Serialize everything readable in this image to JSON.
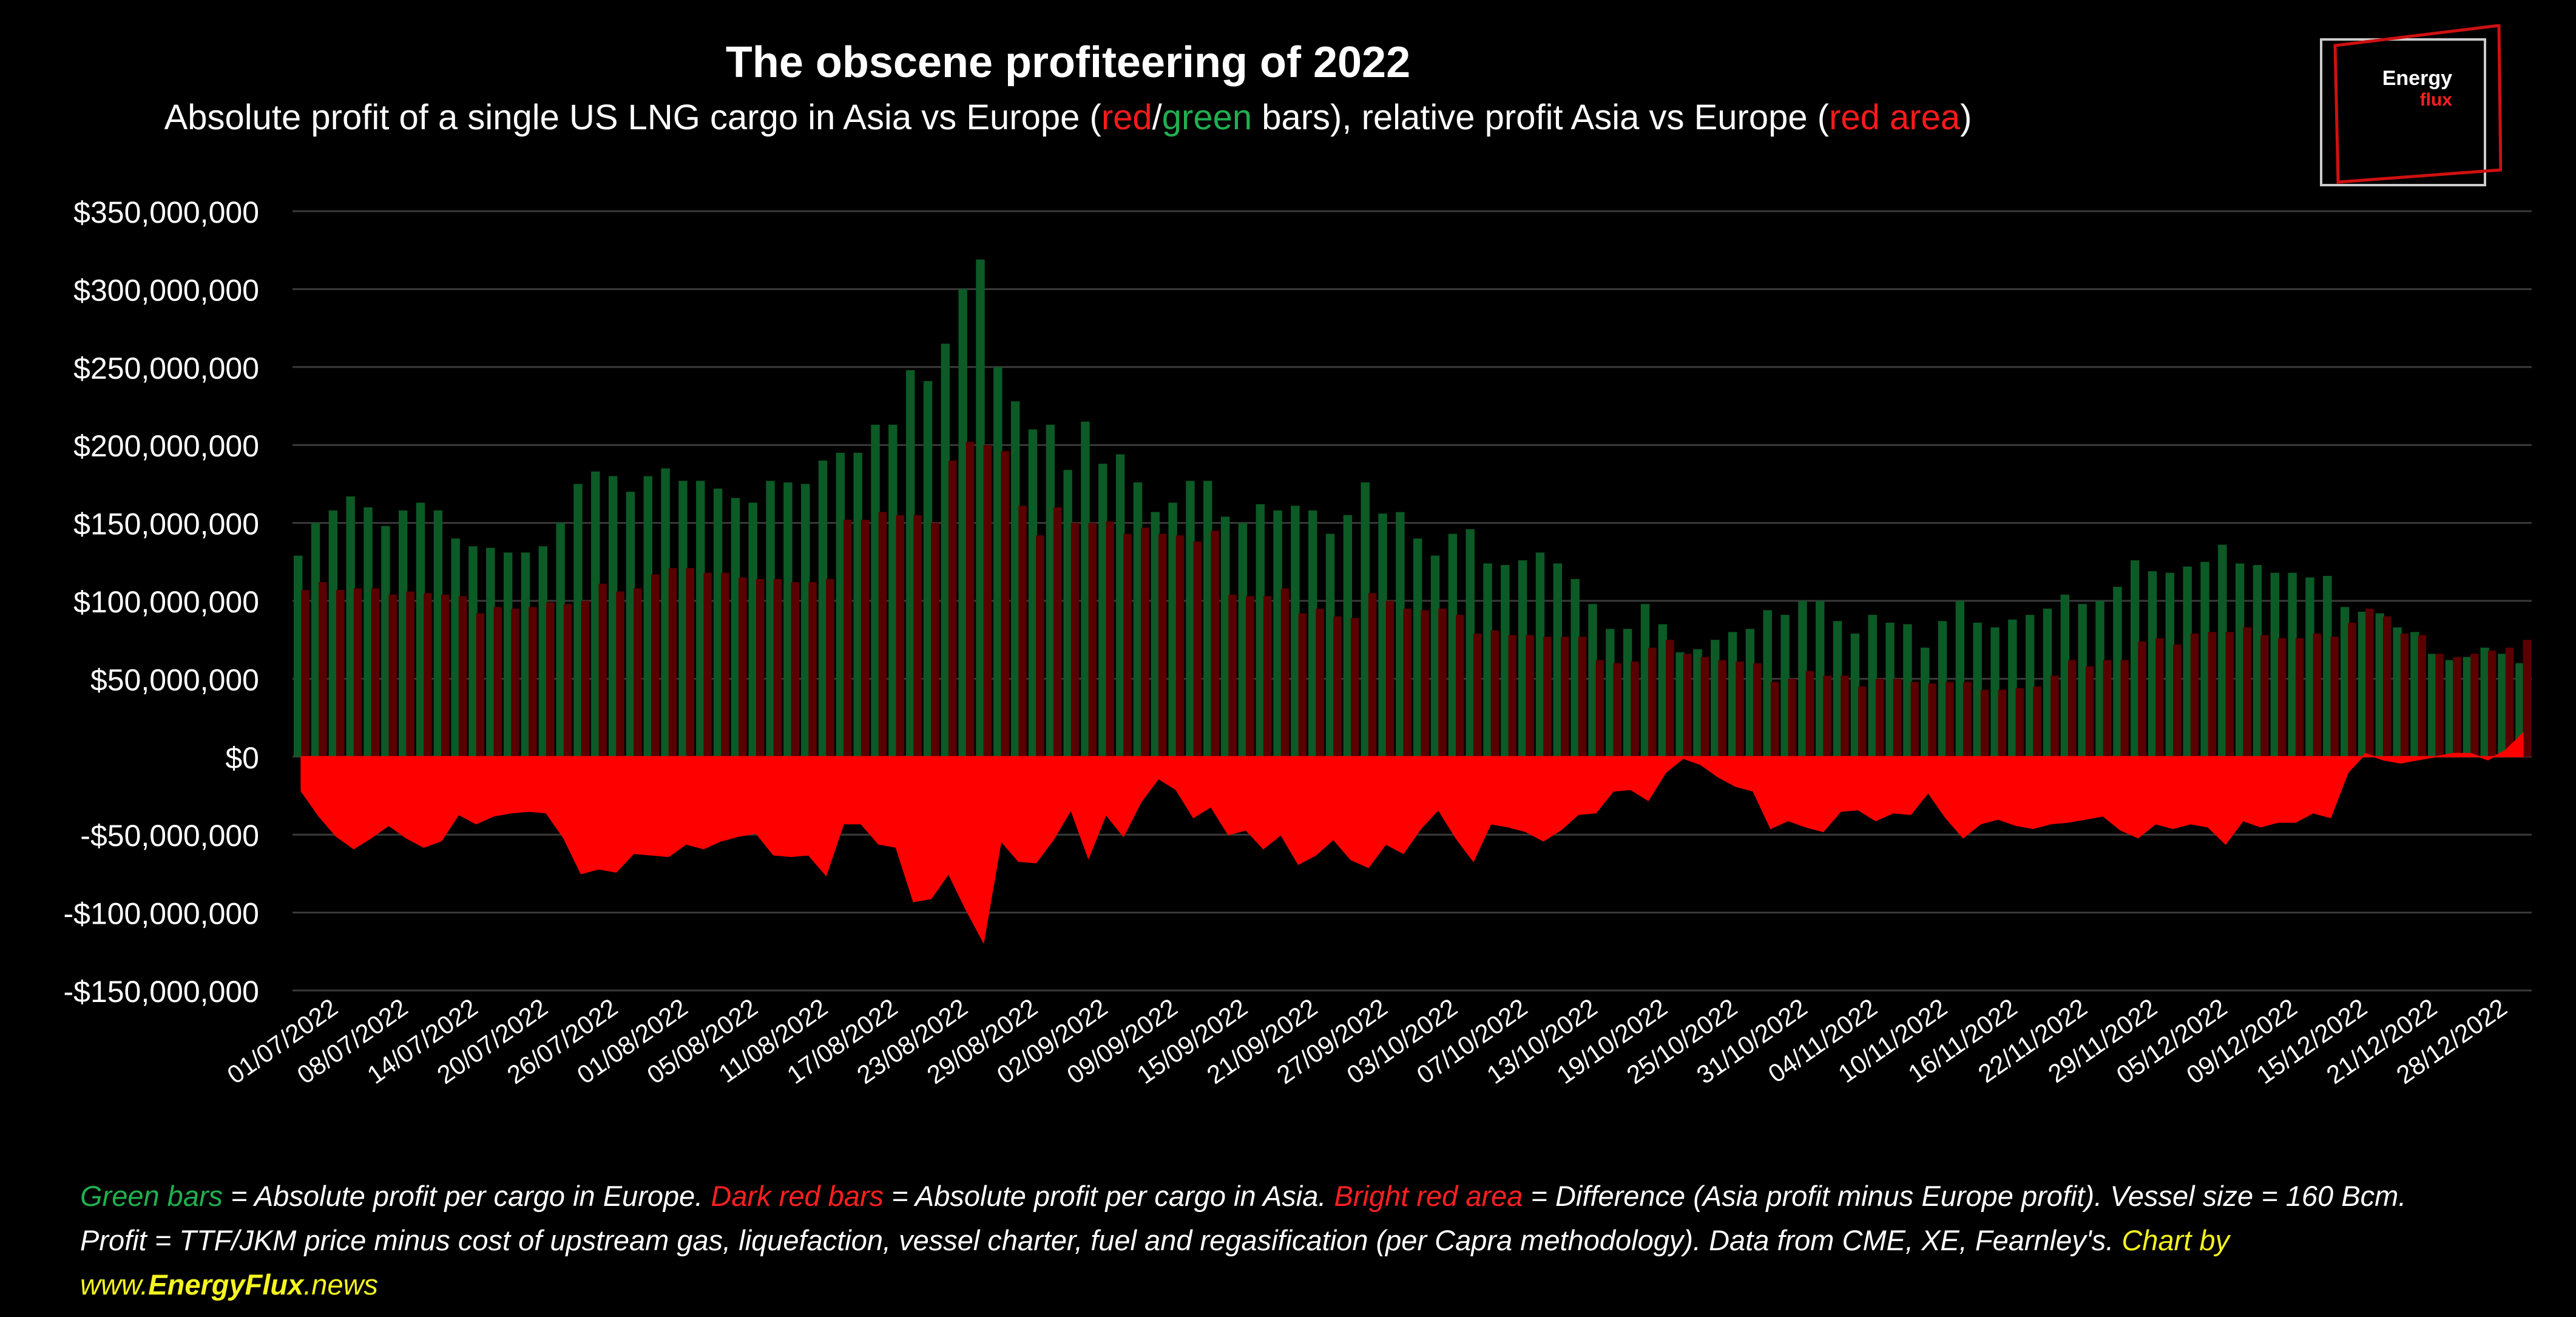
{
  "title": "The obscene profiteering of 2022",
  "subtitle": {
    "part1": "Absolute profit of a single US LNG cargo in Asia vs Europe (",
    "red": "red",
    "slash": "/",
    "green": "green",
    "part2": " bars), relative profit Asia vs Europe (",
    "red_area": "red area",
    "part3": ")"
  },
  "logo": {
    "line1": "Energy",
    "line2": "flux"
  },
  "footer": {
    "green_label": "Green bars",
    "green_desc": " = Absolute profit per cargo in Europe. ",
    "darkred_label": "Dark red bars",
    "darkred_desc": " = Absolute profit per cargo in Asia. ",
    "bright_label": "Bright red area",
    "bright_desc": " = Difference (Asia profit minus Europe profit). Vessel size = 160 Bcm.",
    "line2": "Profit = TTF/JKM price minus cost of upstream gas, liquefaction, vessel charter, fuel and regasification (per Capra methodology). Data from CME, XE, Fearnley's.",
    "chart_by": " Chart by",
    "site_pre": "www.",
    "site_bold": "EnergyFlux",
    "site_post": ".news"
  },
  "colors": {
    "europe_bar": "#0c5a26",
    "asia_bar": "#5a0000",
    "difference_area": "#ff0000",
    "grid": "#3a3a3a"
  },
  "chart_data": {
    "type": "bar",
    "title": "The obscene profiteering of 2022",
    "ylim": [
      -150000000,
      350000000
    ],
    "yticks": [
      350000000,
      300000000,
      250000000,
      200000000,
      150000000,
      100000000,
      50000000,
      0,
      -50000000,
      -100000000,
      -150000000
    ],
    "ytick_labels": [
      "$350,000,000",
      "$300,000,000",
      "$250,000,000",
      "$200,000,000",
      "$150,000,000",
      "$100,000,000",
      "$50,000,000",
      "$0",
      "-$50,000,000",
      "-$100,000,000",
      "-$150,000,000"
    ],
    "xtick_labels": [
      "01/07/2022",
      "08/07/2022",
      "14/07/2022",
      "20/07/2022",
      "26/07/2022",
      "01/08/2022",
      "05/08/2022",
      "11/08/2022",
      "17/08/2022",
      "23/08/2022",
      "29/08/2022",
      "02/09/2022",
      "09/09/2022",
      "15/09/2022",
      "21/09/2022",
      "27/09/2022",
      "03/10/2022",
      "07/10/2022",
      "13/10/2022",
      "19/10/2022",
      "25/10/2022",
      "31/10/2022",
      "04/11/2022",
      "10/11/2022",
      "16/11/2022",
      "22/11/2022",
      "29/11/2022",
      "05/12/2022",
      "09/12/2022",
      "15/12/2022",
      "21/12/2022",
      "28/12/2022"
    ],
    "grid": true,
    "series": [
      {
        "name": "Absolute profit per cargo in Europe",
        "color": "#0c5a26",
        "kind": "bar",
        "values": [
          129000000,
          150000000,
          158000000,
          167000000,
          160000000,
          148000000,
          158000000,
          163000000,
          158000000,
          140000000,
          135000000,
          134000000,
          131000000,
          131000000,
          135000000,
          150000000,
          175000000,
          183000000,
          180000000,
          170000000,
          180000000,
          185000000,
          177000000,
          177000000,
          172000000,
          166000000,
          163000000,
          177000000,
          176000000,
          175000000,
          190000000,
          195000000,
          195000000,
          213000000,
          213000000,
          248000000,
          241000000,
          265000000,
          300000000,
          319000000,
          250000000,
          228000000,
          210000000,
          213000000,
          184000000,
          215000000,
          188000000,
          194000000,
          176000000,
          157000000,
          163000000,
          177000000,
          177000000,
          154000000,
          150000000,
          162000000,
          158000000,
          161000000,
          158000000,
          143000000,
          155000000,
          176000000,
          156000000,
          157000000,
          140000000,
          129000000,
          143000000,
          146000000,
          124000000,
          123000000,
          126000000,
          131000000,
          124000000,
          114000000,
          98000000,
          82000000,
          82000000,
          98000000,
          85000000,
          67000000,
          69000000,
          75000000,
          80000000,
          82000000,
          94000000,
          91000000,
          100000000,
          100000000,
          87000000,
          79000000,
          91000000,
          86000000,
          85000000,
          70000000,
          87000000,
          100000000,
          86000000,
          83000000,
          88000000,
          91000000,
          95000000,
          104000000,
          98000000,
          100000000,
          109000000,
          126000000,
          119000000,
          118000000,
          122000000,
          125000000,
          136000000,
          124000000,
          123000000,
          118000000,
          118000000,
          115000000,
          116000000,
          96000000,
          93000000,
          92000000,
          83000000,
          80000000,
          66000000,
          62000000,
          64000000,
          70000000,
          66000000,
          60000000
        ]
      },
      {
        "name": "Absolute profit per cargo in Asia",
        "color": "#5a0000",
        "kind": "bar",
        "values": [
          107000000,
          112000000,
          107000000,
          108000000,
          108000000,
          104000000,
          106000000,
          105000000,
          104000000,
          103000000,
          92000000,
          96000000,
          95000000,
          96000000,
          99000000,
          98000000,
          100000000,
          111000000,
          106000000,
          108000000,
          117000000,
          121000000,
          121000000,
          118000000,
          118000000,
          115000000,
          114000000,
          114000000,
          112000000,
          112000000,
          114000000,
          152000000,
          152000000,
          157000000,
          155000000,
          155000000,
          150000000,
          190000000,
          202000000,
          200000000,
          196000000,
          161000000,
          142000000,
          160000000,
          150000000,
          150000000,
          151000000,
          143000000,
          147000000,
          143000000,
          142000000,
          138000000,
          145000000,
          104000000,
          103000000,
          103000000,
          108000000,
          92000000,
          95000000,
          90000000,
          89000000,
          105000000,
          100000000,
          95000000,
          94000000,
          95000000,
          91000000,
          79000000,
          81000000,
          78000000,
          78000000,
          77000000,
          77000000,
          77000000,
          62000000,
          60000000,
          61000000,
          70000000,
          75000000,
          66000000,
          64000000,
          62000000,
          61000000,
          60000000,
          48000000,
          50000000,
          55000000,
          52000000,
          52000000,
          45000000,
          50000000,
          50000000,
          48000000,
          47000000,
          48000000,
          48000000,
          43000000,
          43000000,
          44000000,
          45000000,
          52000000,
          62000000,
          58000000,
          62000000,
          62000000,
          74000000,
          76000000,
          72000000,
          79000000,
          80000000,
          80000000,
          83000000,
          78000000,
          76000000,
          76000000,
          79000000,
          77000000,
          86000000,
          95000000,
          90000000,
          79000000,
          78000000,
          66000000,
          64000000,
          66000000,
          68000000,
          70000000,
          75000000
        ]
      },
      {
        "name": "Difference (Asia profit minus Europe profit)",
        "color": "#ff0000",
        "kind": "area",
        "values": [
          -22000000,
          -38000000,
          -51000000,
          -59000000,
          -52000000,
          -44000000,
          -52000000,
          -58000000,
          -54000000,
          -37000000,
          -43000000,
          -38000000,
          -36000000,
          -35000000,
          -36000000,
          -52000000,
          -75000000,
          -72000000,
          -74000000,
          -62000000,
          -63000000,
          -64000000,
          -56000000,
          -59000000,
          -54000000,
          -51000000,
          -49000000,
          -63000000,
          -64000000,
          -63000000,
          -76000000,
          -43000000,
          -43000000,
          -56000000,
          -58000000,
          -93000000,
          -91000000,
          -75000000,
          -98000000,
          -119000000,
          -54000000,
          -67000000,
          -68000000,
          -53000000,
          -34000000,
          -65000000,
          -37000000,
          -51000000,
          -29000000,
          -14000000,
          -21000000,
          -39000000,
          -32000000,
          -50000000,
          -47000000,
          -59000000,
          -50000000,
          -69000000,
          -63000000,
          -53000000,
          -66000000,
          -71000000,
          -56000000,
          -62000000,
          -46000000,
          -34000000,
          -52000000,
          -67000000,
          -43000000,
          -45000000,
          -48000000,
          -54000000,
          -47000000,
          -37000000,
          -36000000,
          -22000000,
          -21000000,
          -28000000,
          -10000000,
          -1000000,
          -5000000,
          -13000000,
          -19000000,
          -22000000,
          -46000000,
          -41000000,
          -45000000,
          -48000000,
          -35000000,
          -34000000,
          -41000000,
          -36000000,
          -37000000,
          -23000000,
          -39000000,
          -52000000,
          -43000000,
          -40000000,
          -44000000,
          -46000000,
          -43000000,
          -42000000,
          -40000000,
          -38000000,
          -47000000,
          -52000000,
          -43000000,
          -46000000,
          -43000000,
          -45000000,
          -56000000,
          -41000000,
          -45000000,
          -42000000,
          -42000000,
          -36000000,
          -39000000,
          -10000000,
          2000000,
          -2000000,
          -4000000,
          -2000000,
          0,
          2000000,
          2000000,
          -2000000,
          4000000,
          15000000
        ]
      }
    ]
  }
}
